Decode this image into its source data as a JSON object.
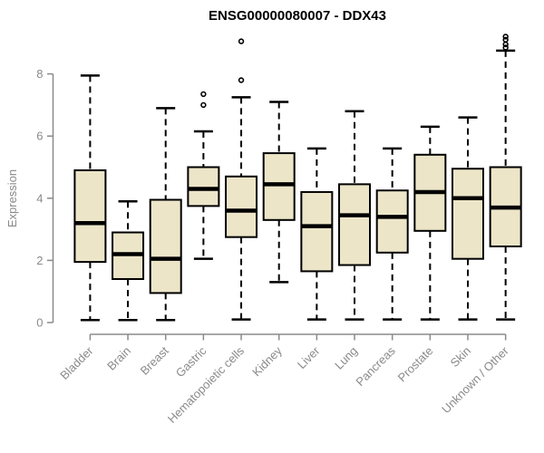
{
  "page": {
    "background": "#ffffff"
  },
  "colors": {
    "box_fill": "#ece5c8",
    "box_border": "#000000",
    "median_line": "#000000",
    "whisker": "#000000",
    "outlier_stroke": "#000000",
    "axis": "#8a8a8a",
    "tick_label": "#8a8a8a",
    "title": "#000000",
    "background": "#ffffff"
  },
  "chart_data": {
    "type": "boxplot",
    "title": "ENSG00000080007 - DDX43",
    "xlabel": "",
    "ylabel": "Expression",
    "ylim": [
      0,
      9.4
    ],
    "yticks": [
      0,
      2,
      4,
      6,
      8
    ],
    "grid": false,
    "legend": "none",
    "categories": [
      "Bladder",
      "Brain",
      "Breast",
      "Gastric",
      "Hematopoietic cells",
      "Kidney",
      "Liver",
      "Lung",
      "Pancreas",
      "Prostate",
      "Skin",
      "Unknown / Other"
    ],
    "series": [
      {
        "name": "Bladder",
        "low": 0.08,
        "q1": 1.95,
        "median": 3.2,
        "q3": 4.9,
        "high": 7.95,
        "outliers": []
      },
      {
        "name": "Brain",
        "low": 0.08,
        "q1": 1.4,
        "median": 2.2,
        "q3": 2.9,
        "high": 3.9,
        "outliers": []
      },
      {
        "name": "Breast",
        "low": 0.08,
        "q1": 0.95,
        "median": 2.05,
        "q3": 3.95,
        "high": 6.9,
        "outliers": []
      },
      {
        "name": "Gastric",
        "low": 2.05,
        "q1": 3.75,
        "median": 4.3,
        "q3": 5.0,
        "high": 6.15,
        "outliers": [
          7.0,
          7.35
        ]
      },
      {
        "name": "Hematopoietic cells",
        "low": 0.1,
        "q1": 2.75,
        "median": 3.6,
        "q3": 4.7,
        "high": 7.25,
        "outliers": [
          7.8,
          9.05
        ]
      },
      {
        "name": "Kidney",
        "low": 1.3,
        "q1": 3.3,
        "median": 4.45,
        "q3": 5.45,
        "high": 7.1,
        "outliers": []
      },
      {
        "name": "Liver",
        "low": 0.1,
        "q1": 1.65,
        "median": 3.1,
        "q3": 4.2,
        "high": 5.6,
        "outliers": []
      },
      {
        "name": "Lung",
        "low": 0.1,
        "q1": 1.85,
        "median": 3.45,
        "q3": 4.45,
        "high": 6.8,
        "outliers": []
      },
      {
        "name": "Pancreas",
        "low": 0.1,
        "q1": 2.25,
        "median": 3.4,
        "q3": 4.25,
        "high": 5.6,
        "outliers": []
      },
      {
        "name": "Prostate",
        "low": 0.1,
        "q1": 2.95,
        "median": 4.2,
        "q3": 5.4,
        "high": 6.3,
        "outliers": []
      },
      {
        "name": "Skin",
        "low": 0.1,
        "q1": 2.05,
        "median": 4.0,
        "q3": 4.95,
        "high": 6.6,
        "outliers": []
      },
      {
        "name": "Unknown / Other",
        "low": 0.1,
        "q1": 2.45,
        "median": 3.7,
        "q3": 5.0,
        "high": 8.75,
        "outliers": [
          8.85,
          8.95,
          9.1,
          9.2
        ]
      }
    ]
  }
}
